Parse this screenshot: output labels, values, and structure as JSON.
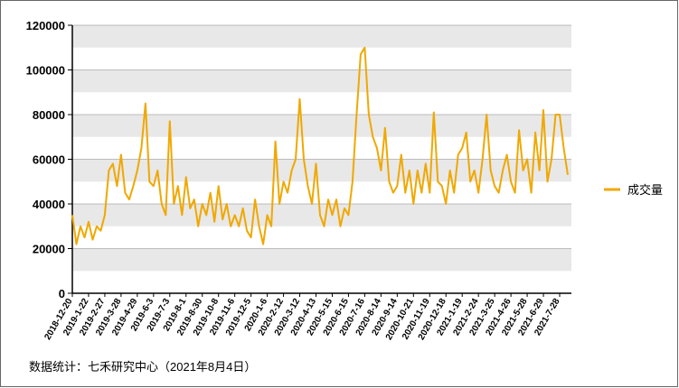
{
  "chart_data": {
    "type": "line",
    "series": [
      {
        "name": "成交量",
        "color": "#f0a800",
        "values": [
          35000,
          22000,
          30000,
          25000,
          32000,
          24000,
          30000,
          28000,
          35000,
          55000,
          58000,
          48000,
          62000,
          45000,
          42000,
          48000,
          55000,
          65000,
          85000,
          50000,
          48000,
          55000,
          40000,
          35000,
          77000,
          40000,
          48000,
          35000,
          52000,
          38000,
          42000,
          30000,
          40000,
          35000,
          45000,
          32000,
          48000,
          33000,
          40000,
          30000,
          35000,
          30000,
          38000,
          28000,
          25000,
          42000,
          30000,
          22000,
          35000,
          30000,
          68000,
          40000,
          50000,
          45000,
          55000,
          60000,
          87000,
          60000,
          48000,
          40000,
          58000,
          35000,
          30000,
          42000,
          35000,
          42000,
          30000,
          38000,
          35000,
          50000,
          80000,
          107000,
          110000,
          80000,
          70000,
          65000,
          55000,
          74000,
          50000,
          45000,
          48000,
          62000,
          45000,
          55000,
          40000,
          55000,
          45000,
          58000,
          45000,
          81000,
          50000,
          48000,
          40000,
          55000,
          45000,
          62000,
          65000,
          72000,
          50000,
          55000,
          45000,
          60000,
          80000,
          55000,
          48000,
          45000,
          55000,
          62000,
          50000,
          45000,
          73000,
          55000,
          60000,
          45000,
          72000,
          55000,
          82000,
          50000,
          60000,
          80000,
          80000,
          65000,
          53000
        ]
      }
    ],
    "categories": [
      "2018-12-20",
      null,
      null,
      null,
      "2019-1-22",
      null,
      null,
      null,
      "2019-2-27",
      null,
      null,
      null,
      "2019-3-28",
      null,
      null,
      null,
      "2019-4-29",
      null,
      null,
      null,
      "2019-6-3",
      null,
      null,
      null,
      "2019-7-3",
      null,
      null,
      null,
      "2019-8-1",
      null,
      null,
      null,
      "2019-8-30",
      null,
      null,
      null,
      "2019-10-8",
      null,
      null,
      null,
      "2019-11-6",
      null,
      null,
      null,
      "2019-12-5",
      null,
      null,
      null,
      "2020-1-6",
      null,
      null,
      null,
      "2020-2-12",
      null,
      null,
      null,
      "2020-3-12",
      null,
      null,
      null,
      "2020-4-13",
      null,
      null,
      null,
      "2020-5-15",
      null,
      null,
      null,
      "2020-6-15",
      null,
      null,
      null,
      "2020-7-16",
      null,
      null,
      null,
      "2020-8-14",
      null,
      null,
      null,
      "2020-9-14",
      null,
      null,
      null,
      "2020-10-21",
      null,
      null,
      null,
      "2020-11-19",
      null,
      null,
      null,
      "2020-12-18",
      null,
      null,
      null,
      "2021-1-19",
      null,
      null,
      null,
      "2021-2-24",
      null,
      null,
      null,
      "2021-3-25",
      null,
      null,
      null,
      "2021-4-26",
      null,
      null,
      null,
      "2021-5-28",
      null,
      null,
      null,
      "2021-6-29",
      null,
      null,
      null,
      "2021-7-28",
      null,
      null
    ],
    "ylim": [
      0,
      120000
    ],
    "yticks": [
      0,
      20000,
      40000,
      60000,
      80000,
      100000,
      120000
    ],
    "grid": true,
    "legend": "right",
    "annotations": [
      "数据统计：七禾研究中心（2021年8月4日）"
    ]
  }
}
